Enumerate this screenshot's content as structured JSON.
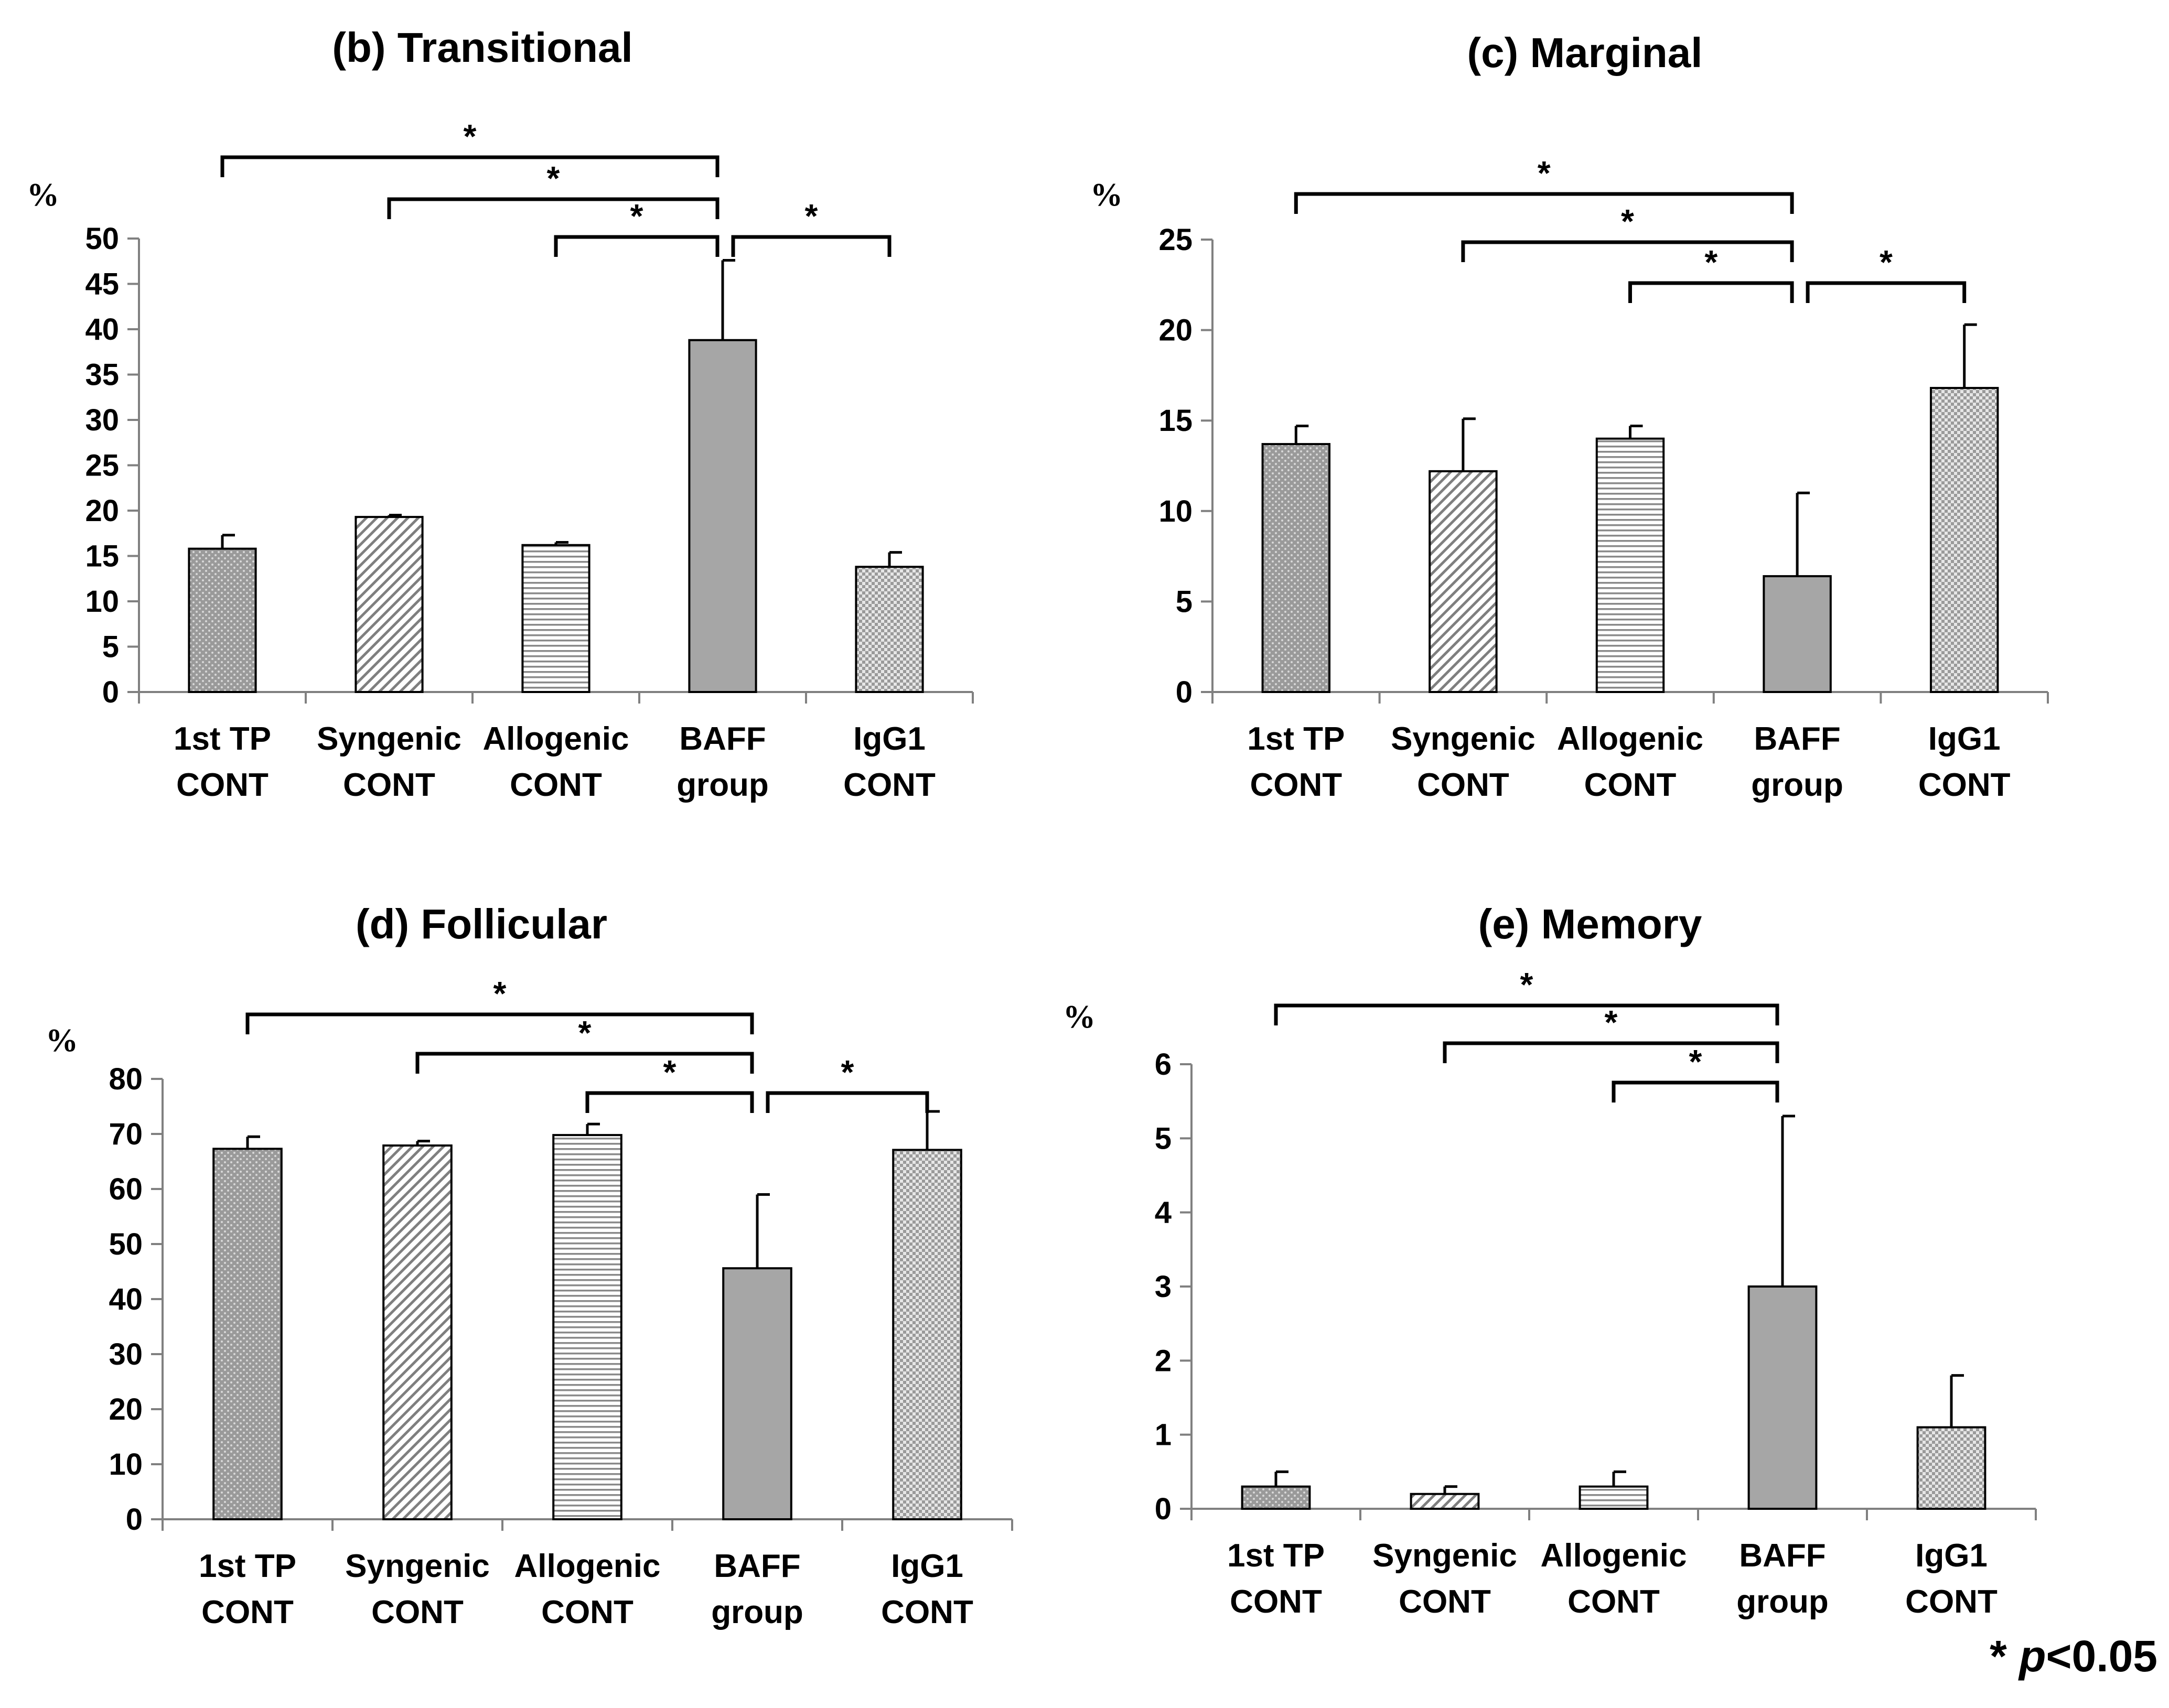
{
  "chart_data": [
    {
      "type": "bar",
      "panel": "b",
      "title": "(b) Transitional",
      "ylabel": "%",
      "ylim": [
        0,
        50
      ],
      "yticks": [
        0,
        5,
        10,
        15,
        20,
        25,
        30,
        35,
        40,
        45,
        50
      ],
      "categories": [
        "1st TP CONT",
        "Syngenic CONT",
        "Allogenic CONT",
        "BAFF group",
        "IgG1 CONT"
      ],
      "category_lines": [
        [
          "1st TP",
          "CONT"
        ],
        [
          "Syngenic",
          "CONT"
        ],
        [
          "Allogenic",
          "CONT"
        ],
        [
          "BAFF",
          "group"
        ],
        [
          "IgG1",
          "CONT"
        ]
      ],
      "values": [
        15.8,
        19.3,
        16.2,
        38.8,
        13.8
      ],
      "errors": [
        1.5,
        0.2,
        0.3,
        8.8,
        1.6
      ],
      "significance": [
        {
          "from": 0,
          "to": 3,
          "label": "*"
        },
        {
          "from": 1,
          "to": 3,
          "label": "*"
        },
        {
          "from": 2,
          "to": 3,
          "label": "*"
        },
        {
          "from": 3,
          "to": 4,
          "label": "*"
        }
      ]
    },
    {
      "type": "bar",
      "panel": "c",
      "title": "(c) Marginal",
      "ylabel": "%",
      "ylim": [
        0,
        25
      ],
      "yticks": [
        0,
        5,
        10,
        15,
        20,
        25
      ],
      "categories": [
        "1st TP CONT",
        "Syngenic CONT",
        "Allogenic CONT",
        "BAFF group",
        "IgG1 CONT"
      ],
      "category_lines": [
        [
          "1st TP",
          "CONT"
        ],
        [
          "Syngenic",
          "CONT"
        ],
        [
          "Allogenic",
          "CONT"
        ],
        [
          "BAFF",
          "group"
        ],
        [
          "IgG1",
          "CONT"
        ]
      ],
      "values": [
        13.7,
        12.2,
        14.0,
        6.4,
        16.8
      ],
      "errors": [
        1.0,
        2.9,
        0.7,
        4.6,
        3.5
      ],
      "significance": [
        {
          "from": 0,
          "to": 3,
          "label": "*"
        },
        {
          "from": 1,
          "to": 3,
          "label": "*"
        },
        {
          "from": 2,
          "to": 3,
          "label": "*"
        },
        {
          "from": 3,
          "to": 4,
          "label": "*"
        }
      ]
    },
    {
      "type": "bar",
      "panel": "d",
      "title": "(d) Follicular",
      "ylabel": "%",
      "ylim": [
        0,
        80
      ],
      "yticks": [
        0,
        10,
        20,
        30,
        40,
        50,
        60,
        70,
        80
      ],
      "categories": [
        "1st TP CONT",
        "Syngenic CONT",
        "Allogenic CONT",
        "BAFF group",
        "IgG1 CONT"
      ],
      "category_lines": [
        [
          "1st TP",
          "CONT"
        ],
        [
          "Syngenic",
          "CONT"
        ],
        [
          "Allogenic",
          "CONT"
        ],
        [
          "BAFF",
          "group"
        ],
        [
          "IgG1",
          "CONT"
        ]
      ],
      "values": [
        67.3,
        67.9,
        69.8,
        45.6,
        67.1
      ],
      "errors": [
        2.2,
        0.8,
        2.0,
        13.4,
        7.0
      ],
      "significance": [
        {
          "from": 0,
          "to": 3,
          "label": "*"
        },
        {
          "from": 1,
          "to": 3,
          "label": "*"
        },
        {
          "from": 2,
          "to": 3,
          "label": "*"
        },
        {
          "from": 3,
          "to": 4,
          "label": "*"
        }
      ]
    },
    {
      "type": "bar",
      "panel": "e",
      "title": "(e) Memory",
      "ylabel": "%",
      "ylim": [
        0,
        6
      ],
      "yticks": [
        0,
        1,
        2,
        3,
        4,
        5,
        6
      ],
      "categories": [
        "1st TP CONT",
        "Syngenic CONT",
        "Allogenic CONT",
        "BAFF group",
        "IgG1 CONT"
      ],
      "category_lines": [
        [
          "1st TP",
          "CONT"
        ],
        [
          "Syngenic",
          "CONT"
        ],
        [
          "Allogenic",
          "CONT"
        ],
        [
          "BAFF",
          "group"
        ],
        [
          "IgG1",
          "CONT"
        ]
      ],
      "values": [
        0.3,
        0.2,
        0.3,
        3.0,
        1.1
      ],
      "errors": [
        0.2,
        0.1,
        0.2,
        2.3,
        0.7
      ],
      "significance": [
        {
          "from": 0,
          "to": 3,
          "label": "*"
        },
        {
          "from": 1,
          "to": 3,
          "label": "*"
        },
        {
          "from": 2,
          "to": 3,
          "label": "*"
        }
      ]
    }
  ],
  "footnote": {
    "star": "*",
    "p": "p",
    "rest": "<0.05"
  },
  "colors": {
    "bar_fill": "#a6a6a6",
    "bar_light": "#d0d0d0",
    "stroke": "#000000",
    "hatch": "#7f7f7f",
    "axis": "#808080"
  },
  "bar_patterns": [
    "dots",
    "diag",
    "horiz",
    "solid",
    "check"
  ]
}
